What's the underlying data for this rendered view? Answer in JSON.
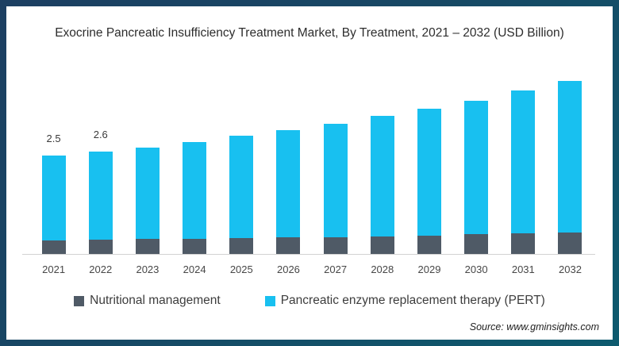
{
  "title": "Exocrine Pancreatic Insufficiency Treatment Market, By Treatment, 2021 – 2032 (USD Billion)",
  "chart_data": {
    "type": "bar",
    "stacked": true,
    "title": "Exocrine Pancreatic Insufficiency Treatment Market, By Treatment, 2021 – 2032 (USD Billion)",
    "categories": [
      "2021",
      "2022",
      "2023",
      "2024",
      "2025",
      "2026",
      "2027",
      "2028",
      "2029",
      "2030",
      "2031",
      "2032"
    ],
    "series": [
      {
        "name": "Nutritional management",
        "color": "#4f5a66",
        "values": [
          0.34,
          0.36,
          0.38,
          0.38,
          0.4,
          0.42,
          0.42,
          0.44,
          0.46,
          0.5,
          0.52,
          0.54
        ]
      },
      {
        "name": "Pancreatic enzyme replacement therapy (PERT)",
        "color": "#18c0f0",
        "values": [
          2.16,
          2.24,
          2.32,
          2.47,
          2.6,
          2.73,
          2.88,
          3.06,
          3.24,
          3.4,
          3.63,
          3.86
        ]
      }
    ],
    "totals": [
      2.5,
      2.6,
      2.7,
      2.85,
      3.0,
      3.15,
      3.3,
      3.5,
      3.7,
      3.9,
      4.15,
      4.4
    ],
    "data_labels": [
      "2.5",
      "2.6",
      "",
      "",
      "",
      "",
      "",
      "",
      "",
      "",
      "",
      ""
    ],
    "xlabel": "",
    "ylabel": "",
    "ylim": [
      0,
      4.6
    ],
    "grid": false,
    "legend_position": "bottom",
    "axis_line_color": "#d2d2d2"
  },
  "colors": {
    "frame_gradient_start": "#1c3f62",
    "frame_gradient_end": "#0d5a6e",
    "background": "#ffffff",
    "pert_cyan": "#18c0f0",
    "nutritional_gray": "#4f5a66"
  },
  "source": {
    "text": "Source: www.gminsights.com"
  }
}
